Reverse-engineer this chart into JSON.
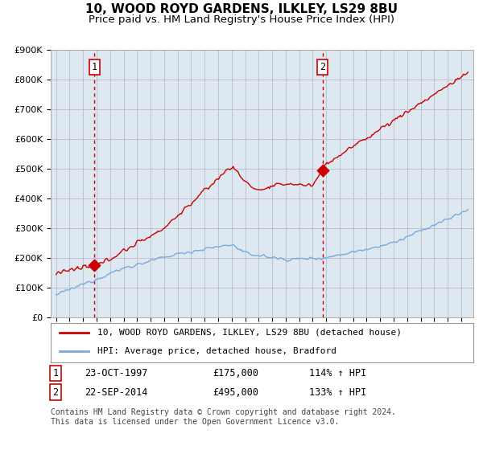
{
  "title": "10, WOOD ROYD GARDENS, ILKLEY, LS29 8BU",
  "subtitle": "Price paid vs. HM Land Registry's House Price Index (HPI)",
  "title_fontsize": 11,
  "subtitle_fontsize": 9.5,
  "ylim": [
    0,
    900000
  ],
  "yticks": [
    0,
    100000,
    200000,
    300000,
    400000,
    500000,
    600000,
    700000,
    800000,
    900000
  ],
  "ytick_labels": [
    "£0",
    "£100K",
    "£200K",
    "£300K",
    "£400K",
    "£500K",
    "£600K",
    "£700K",
    "£800K",
    "£900K"
  ],
  "sale1_x": 1997.83,
  "sale1_y": 175000,
  "sale1_label": "1",
  "sale2_x": 2014.75,
  "sale2_y": 495000,
  "sale2_label": "2",
  "hpi_line_color": "#7aaadd",
  "price_line_color": "#cc0000",
  "sale_dot_color": "#cc0000",
  "vline_color": "#cc0000",
  "grid_color": "#bbbbcc",
  "bg_color": "#dde8f0",
  "plot_bg_color": "#dde8f0",
  "outer_bg_color": "#ffffff",
  "legend_line1": "10, WOOD ROYD GARDENS, ILKLEY, LS29 8BU (detached house)",
  "legend_line2": "HPI: Average price, detached house, Bradford",
  "table_row1": [
    "1",
    "23-OCT-1997",
    "£175,000",
    "114% ↑ HPI"
  ],
  "table_row2": [
    "2",
    "22-SEP-2014",
    "£495,000",
    "133% ↑ HPI"
  ],
  "footer": "Contains HM Land Registry data © Crown copyright and database right 2024.\nThis data is licensed under the Open Government Licence v3.0.",
  "xlim_left": 1994.6,
  "xlim_right": 2025.9
}
